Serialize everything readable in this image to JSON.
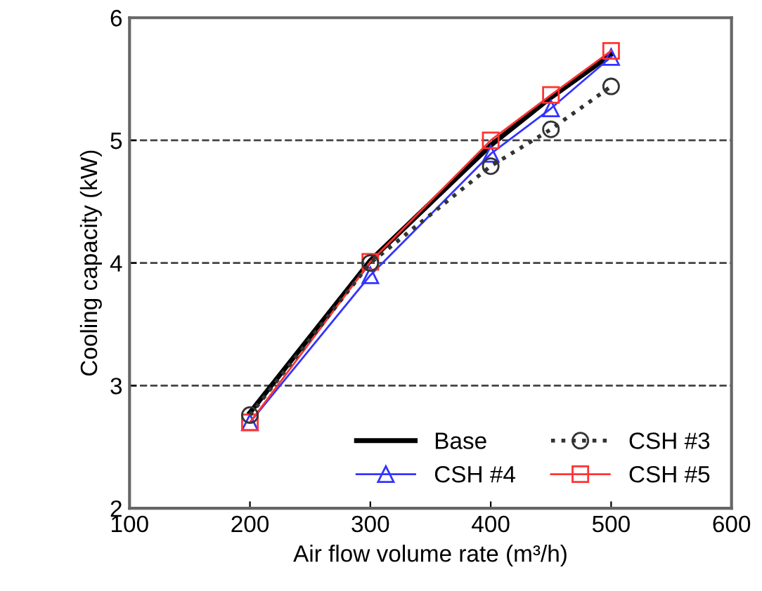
{
  "chart_data": {
    "type": "line",
    "xlabel": "Air flow volume rate (m³/h)",
    "ylabel": "Cooling capacity (kW)",
    "x": [
      200,
      300,
      400,
      450,
      500
    ],
    "series": [
      {
        "name": "Base",
        "color": "#000000",
        "values": [
          2.78,
          4.02,
          4.96,
          5.35,
          5.7
        ],
        "marker": "none",
        "line_style": "solid"
      },
      {
        "name": "CSH #3",
        "color": "#333333",
        "values": [
          2.76,
          4.0,
          4.79,
          5.09,
          5.44
        ],
        "marker": "circle",
        "line_style": "dotted"
      },
      {
        "name": "CSH #4",
        "color": "#3333ff",
        "values": [
          2.7,
          3.9,
          4.89,
          5.26,
          5.68
        ],
        "marker": "triangle",
        "line_style": "solid"
      },
      {
        "name": "CSH #5",
        "color": "#ff3333",
        "values": [
          2.7,
          4.01,
          5.0,
          5.37,
          5.73
        ],
        "marker": "square",
        "line_style": "solid"
      }
    ],
    "xlim": [
      100,
      600
    ],
    "xticks": [
      100,
      200,
      300,
      400,
      500,
      600
    ],
    "ylim": [
      2,
      6
    ],
    "yticks": [
      2,
      3,
      4,
      5,
      6
    ],
    "grid": "y",
    "legend": "bottom right"
  }
}
